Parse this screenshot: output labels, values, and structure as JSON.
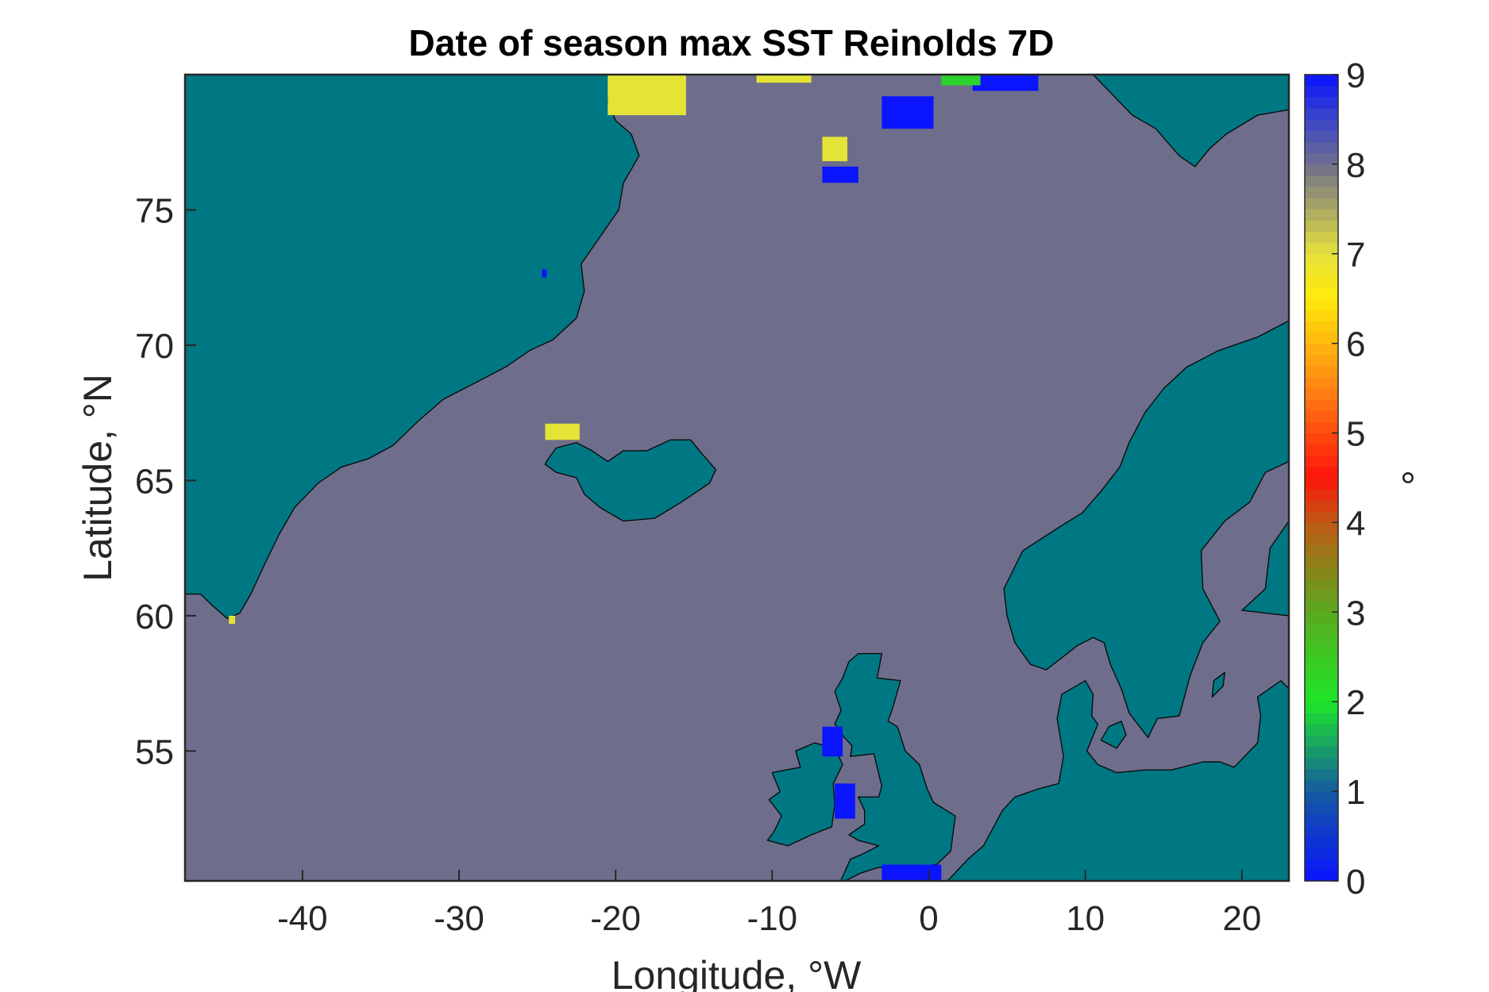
{
  "chart_data": {
    "type": "heatmap",
    "title": "Date of season max SST Reinolds 7D",
    "xlabel": "Longitude, °W",
    "ylabel": "Latitude, °N",
    "colorbar_label": "°",
    "xlim": [
      -47.5,
      23
    ],
    "ylim": [
      50.2,
      80
    ],
    "xticks": [
      -40,
      -30,
      -20,
      -10,
      0,
      10,
      20
    ],
    "yticks": [
      55,
      60,
      65,
      70,
      75
    ],
    "colorbar_ticks": [
      0,
      1,
      2,
      3,
      4,
      5,
      6,
      7,
      8,
      9
    ],
    "clim": [
      0,
      9
    ],
    "colormap": "parula-jet style: blue (0) → green (2) → orange/red (4–5) → yellow (6.5–7) → grey (8) → blue (9)",
    "background_ocean_value": 8,
    "land_color": "#007884",
    "ocean_color": "#6e6e8c",
    "grid": false,
    "legend": "none",
    "coastlines": [
      "Greenland",
      "Iceland",
      "Svalbard",
      "Scandinavia",
      "British Isles",
      "Continental Europe"
    ],
    "colored_patches": [
      {
        "region": "Greenland Sea north coast",
        "lon": [
          -20.5,
          -15.5
        ],
        "lat": [
          78.5,
          80.0
        ],
        "value": 7
      },
      {
        "region": "north edge near -8",
        "lon": [
          -11.0,
          -7.5
        ],
        "lat": [
          79.7,
          80.0
        ],
        "value": 7
      },
      {
        "region": "north of Iceland",
        "lon": [
          -24.5,
          -22.3
        ],
        "lat": [
          66.5,
          67.1
        ],
        "value": 7
      },
      {
        "region": "Fram Strait",
        "lon": [
          -6.8,
          -5.2
        ],
        "lat": [
          76.8,
          77.7
        ],
        "value": 7
      },
      {
        "region": "south Greenland tip",
        "lon": [
          -44.7,
          -44.3
        ],
        "lat": [
          59.7,
          60.0
        ],
        "value": 7
      },
      {
        "region": "Fram Strait",
        "lon": [
          -6.8,
          -4.5
        ],
        "lat": [
          76.0,
          76.6
        ],
        "value": 0
      },
      {
        "region": "west Svalbard",
        "lon": [
          -3.0,
          0.3
        ],
        "lat": [
          78.0,
          79.2
        ],
        "value": 0
      },
      {
        "region": "north Svalbard",
        "lon": [
          2.8,
          7.0
        ],
        "lat": [
          79.4,
          80.0
        ],
        "value": 0
      },
      {
        "region": "north Svalbard",
        "lon": [
          0.8,
          3.3
        ],
        "lat": [
          79.6,
          80.0
        ],
        "value": 2
      },
      {
        "region": "Scotland/Northern Ireland",
        "lon": [
          -6.8,
          -5.5
        ],
        "lat": [
          54.8,
          55.9
        ],
        "value": 0
      },
      {
        "region": "Irish Sea",
        "lon": [
          -6.0,
          -4.7
        ],
        "lat": [
          52.5,
          53.8
        ],
        "value": 0
      },
      {
        "region": "English Channel",
        "lon": [
          -3.0,
          0.8
        ],
        "lat": [
          50.2,
          50.8
        ],
        "value": 0
      },
      {
        "region": "East Greenland fjord",
        "lon": [
          -24.7,
          -24.4
        ],
        "lat": [
          72.5,
          72.8
        ],
        "value": 0
      }
    ]
  },
  "colors": {
    "land": "#007884",
    "ocean": "#6e6e8c",
    "value_0": "#0a14ff",
    "value_2": "#2cd32c",
    "value_7": "#e4e437"
  }
}
